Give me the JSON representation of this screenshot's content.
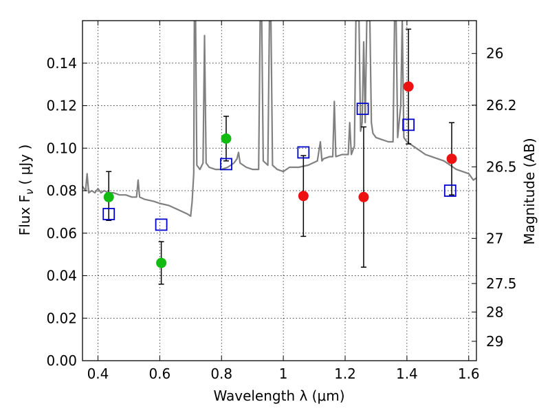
{
  "chart_data": {
    "type": "scatter",
    "xlabel": "Wavelength  λ (μm)",
    "ylabel": "Flux  F",
    "ylabel_sub": "ν",
    "ylabel_units": "( μJy )",
    "ylabel_right": "Magnitude (AB)",
    "xlim": [
      0.35,
      1.625
    ],
    "ylim": [
      0.0,
      0.16
    ],
    "grid": true,
    "x_ticks": [
      {
        "value": 0.4,
        "label": "0.4"
      },
      {
        "value": 0.6,
        "label": "0.6"
      },
      {
        "value": 0.8,
        "label": "0.8"
      },
      {
        "value": 1.0,
        "label": "1"
      },
      {
        "value": 1.2,
        "label": "1.2"
      },
      {
        "value": 1.4,
        "label": "1.4"
      },
      {
        "value": 1.6,
        "label": "1.6"
      }
    ],
    "y_ticks": [
      {
        "value": 0.0,
        "label": "0.00"
      },
      {
        "value": 0.02,
        "label": "0.02"
      },
      {
        "value": 0.04,
        "label": "0.04"
      },
      {
        "value": 0.06,
        "label": "0.06"
      },
      {
        "value": 0.08,
        "label": "0.08"
      },
      {
        "value": 0.1,
        "label": "0.10"
      },
      {
        "value": 0.12,
        "label": "0.12"
      },
      {
        "value": 0.14,
        "label": "0.14"
      }
    ],
    "mag_ticks": [
      {
        "mag": 26,
        "label": "26"
      },
      {
        "mag": 26.2,
        "label": "26.2"
      },
      {
        "mag": 26.5,
        "label": "26.5"
      },
      {
        "mag": 27,
        "label": "27"
      },
      {
        "mag": 27.5,
        "label": "27.5"
      },
      {
        "mag": 28,
        "label": "28"
      },
      {
        "mag": 29,
        "label": "29"
      }
    ],
    "colors": {
      "green": "#11bb11",
      "red": "#ee1111",
      "model": "#808080",
      "square": "#0000cc",
      "errorbar": "#000000"
    },
    "series": [
      {
        "marker": "filled-circle",
        "color": "green",
        "points": [
          {
            "x": 0.435,
            "y": 0.077,
            "ylo": 0.066,
            "yhi": 0.089
          },
          {
            "x": 0.605,
            "y": 0.046,
            "ylo": 0.036,
            "yhi": 0.056
          },
          {
            "x": 0.815,
            "y": 0.1045,
            "ylo": 0.094,
            "yhi": 0.115
          }
        ]
      },
      {
        "marker": "filled-circle",
        "color": "red",
        "points": [
          {
            "x": 1.065,
            "y": 0.0775,
            "ylo": 0.0585,
            "yhi": 0.0965
          },
          {
            "x": 1.26,
            "y": 0.077,
            "ylo": 0.044,
            "yhi": 0.11
          },
          {
            "x": 1.405,
            "y": 0.129,
            "ylo": 0.102,
            "yhi": 0.156
          },
          {
            "x": 1.545,
            "y": 0.095,
            "ylo": 0.078,
            "yhi": 0.112
          }
        ]
      },
      {
        "marker": "open-square",
        "color": "square",
        "points": [
          {
            "x": 0.435,
            "y": 0.069
          },
          {
            "x": 0.605,
            "y": 0.064
          },
          {
            "x": 0.815,
            "y": 0.0925
          },
          {
            "x": 1.065,
            "y": 0.098
          },
          {
            "x": 1.257,
            "y": 0.1185
          },
          {
            "x": 1.405,
            "y": 0.111
          },
          {
            "x": 1.54,
            "y": 0.08
          }
        ]
      }
    ],
    "model_spectrum": [
      [
        0.35,
        0.082
      ],
      [
        0.36,
        0.08
      ],
      [
        0.365,
        0.088
      ],
      [
        0.37,
        0.079
      ],
      [
        0.38,
        0.08
      ],
      [
        0.39,
        0.079
      ],
      [
        0.4,
        0.081
      ],
      [
        0.41,
        0.079
      ],
      [
        0.42,
        0.08
      ],
      [
        0.435,
        0.079
      ],
      [
        0.45,
        0.079
      ],
      [
        0.47,
        0.078
      ],
      [
        0.49,
        0.078
      ],
      [
        0.51,
        0.077
      ],
      [
        0.525,
        0.077
      ],
      [
        0.53,
        0.085
      ],
      [
        0.535,
        0.077
      ],
      [
        0.55,
        0.076
      ],
      [
        0.58,
        0.075
      ],
      [
        0.6,
        0.074
      ],
      [
        0.63,
        0.073
      ],
      [
        0.66,
        0.071
      ],
      [
        0.69,
        0.069
      ],
      [
        0.7,
        0.068
      ],
      [
        0.705,
        0.075
      ],
      [
        0.71,
        0.088
      ],
      [
        0.712,
        0.16
      ],
      [
        0.716,
        0.16
      ],
      [
        0.72,
        0.092
      ],
      [
        0.73,
        0.09
      ],
      [
        0.74,
        0.093
      ],
      [
        0.745,
        0.153
      ],
      [
        0.75,
        0.093
      ],
      [
        0.76,
        0.091
      ],
      [
        0.78,
        0.09
      ],
      [
        0.8,
        0.09
      ],
      [
        0.82,
        0.091
      ],
      [
        0.83,
        0.092
      ],
      [
        0.84,
        0.093
      ],
      [
        0.85,
        0.095
      ],
      [
        0.855,
        0.098
      ],
      [
        0.86,
        0.093
      ],
      [
        0.88,
        0.091
      ],
      [
        0.9,
        0.09
      ],
      [
        0.92,
        0.09
      ],
      [
        0.925,
        0.16
      ],
      [
        0.93,
        0.16
      ],
      [
        0.935,
        0.094
      ],
      [
        0.95,
        0.092
      ],
      [
        0.955,
        0.16
      ],
      [
        0.96,
        0.16
      ],
      [
        0.965,
        0.092
      ],
      [
        0.98,
        0.09
      ],
      [
        1.0,
        0.089
      ],
      [
        1.02,
        0.091
      ],
      [
        1.05,
        0.091
      ],
      [
        1.08,
        0.092
      ],
      [
        1.11,
        0.094
      ],
      [
        1.12,
        0.103
      ],
      [
        1.125,
        0.094
      ],
      [
        1.13,
        0.095
      ],
      [
        1.15,
        0.096
      ],
      [
        1.16,
        0.096
      ],
      [
        1.165,
        0.122
      ],
      [
        1.17,
        0.096
      ],
      [
        1.19,
        0.097
      ],
      [
        1.21,
        0.097
      ],
      [
        1.215,
        0.112
      ],
      [
        1.22,
        0.097
      ],
      [
        1.23,
        0.101
      ],
      [
        1.235,
        0.16
      ],
      [
        1.245,
        0.16
      ],
      [
        1.25,
        0.108
      ],
      [
        1.255,
        0.112
      ],
      [
        1.26,
        0.15
      ],
      [
        1.265,
        0.112
      ],
      [
        1.27,
        0.16
      ],
      [
        1.28,
        0.16
      ],
      [
        1.285,
        0.112
      ],
      [
        1.29,
        0.107
      ],
      [
        1.3,
        0.105
      ],
      [
        1.32,
        0.104
      ],
      [
        1.34,
        0.103
      ],
      [
        1.355,
        0.103
      ],
      [
        1.36,
        0.16
      ],
      [
        1.365,
        0.16
      ],
      [
        1.37,
        0.105
      ],
      [
        1.38,
        0.12
      ],
      [
        1.385,
        0.16
      ],
      [
        1.39,
        0.105
      ],
      [
        1.4,
        0.103
      ],
      [
        1.42,
        0.101
      ],
      [
        1.44,
        0.099
      ],
      [
        1.46,
        0.097
      ],
      [
        1.48,
        0.096
      ],
      [
        1.5,
        0.095
      ],
      [
        1.52,
        0.094
      ],
      [
        1.54,
        0.092
      ],
      [
        1.56,
        0.09
      ],
      [
        1.58,
        0.089
      ],
      [
        1.6,
        0.088
      ],
      [
        1.615,
        0.085
      ],
      [
        1.625,
        0.086
      ]
    ]
  }
}
